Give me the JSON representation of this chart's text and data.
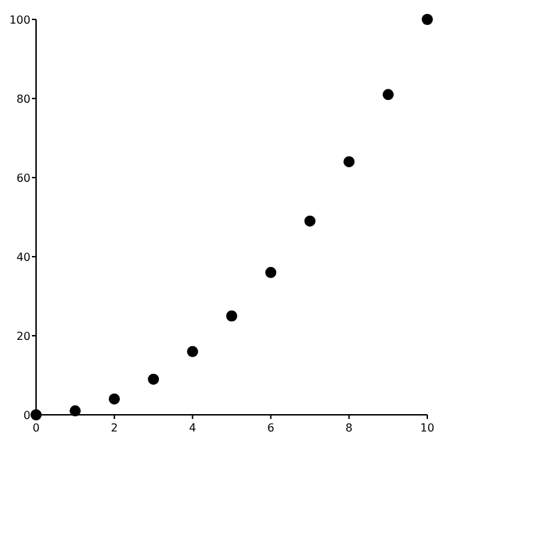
{
  "chart_data": {
    "type": "scatter",
    "x": [
      0,
      1,
      2,
      3,
      4,
      5,
      6,
      7,
      8,
      9,
      10
    ],
    "values": [
      0,
      1,
      4,
      9,
      16,
      25,
      36,
      49,
      64,
      81,
      100
    ],
    "color": "#000000",
    "marker": "circle",
    "xlim": [
      0,
      10
    ],
    "xticks": [
      0,
      2,
      4,
      6,
      8,
      10
    ],
    "ylim": [
      0,
      100
    ],
    "yticks": [
      0,
      20,
      40,
      60,
      80,
      100
    ],
    "grid": false
  }
}
